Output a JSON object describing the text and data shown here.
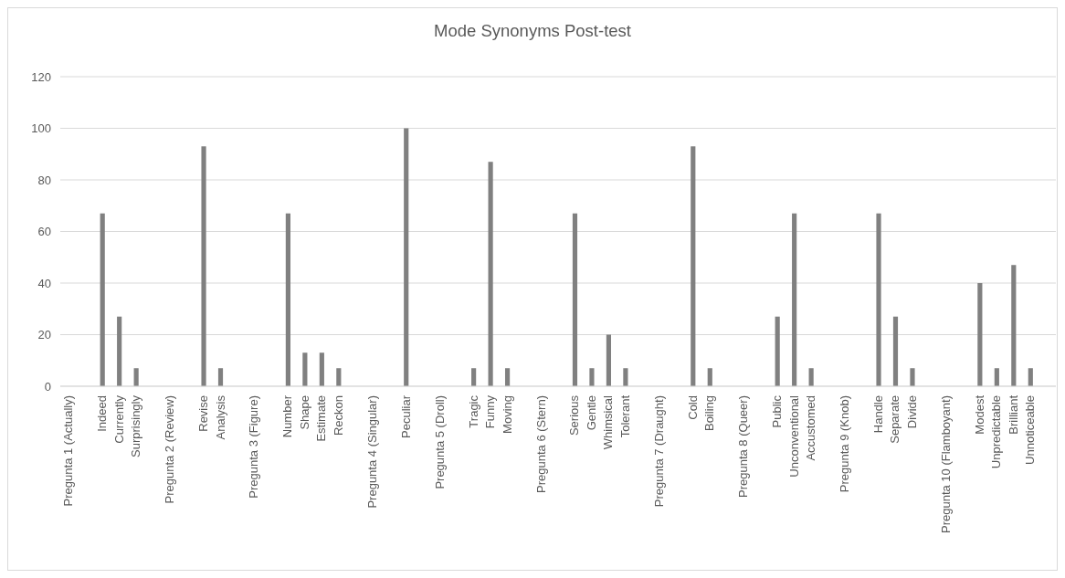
{
  "chart_data": {
    "type": "bar",
    "title": "Mode Synonyms Post-test",
    "categories": [
      "Pregunta 1 (Actually)",
      null,
      "Indeed",
      "Currently",
      "Surprisingly",
      null,
      "Pregunta 2 (Review)",
      null,
      "Revise",
      "Analysis",
      null,
      "Pregunta 3 (Figure)",
      null,
      "Number",
      "Shape",
      "Estimate",
      "Reckon",
      null,
      "Pregunta 4 (Singular)",
      null,
      "Peculiar",
      null,
      "Pregunta 5 (Droll)",
      null,
      "Tragic",
      "Funny",
      "Moving",
      null,
      "Pregunta 6 (Stern)",
      null,
      "Serious",
      "Gentle",
      "Whimsical",
      "Tolerant",
      null,
      "Pregunta 7 (Draught)",
      null,
      "Cold",
      "Boiling",
      null,
      "Pregunta 8 (Queer)",
      null,
      "Public",
      "Unconventional",
      "Accustomed",
      null,
      "Pregunta 9 (Knob)",
      null,
      "Handle",
      "Separate",
      "Divide",
      null,
      "Pregunta 10 (Flamboyant)",
      null,
      "Modest",
      "Unpredictable",
      "Brilliant",
      "Unnoticeable",
      null
    ],
    "values": [
      null,
      null,
      67,
      27,
      7,
      null,
      null,
      null,
      93,
      7,
      null,
      null,
      null,
      67,
      13,
      13,
      7,
      null,
      null,
      null,
      100,
      null,
      null,
      null,
      7,
      87,
      7,
      null,
      null,
      null,
      67,
      7,
      20,
      7,
      null,
      null,
      null,
      93,
      7,
      null,
      null,
      null,
      27,
      67,
      7,
      null,
      null,
      null,
      67,
      27,
      7,
      null,
      null,
      null,
      40,
      7,
      47,
      7,
      null
    ],
    "color": "#808080",
    "ylim": [
      0,
      120
    ],
    "yticks": [
      0,
      20,
      40,
      60,
      80,
      100,
      120
    ],
    "grid": "y"
  }
}
